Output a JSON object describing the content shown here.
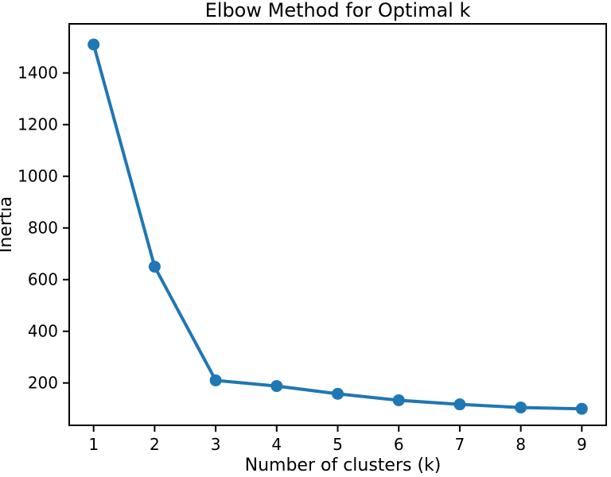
{
  "figure": {
    "background": "#ffffff"
  },
  "chart_data": {
    "type": "line",
    "title": "Elbow Method for Optimal k",
    "xlabel": "Number of clusters (k)",
    "ylabel": "Inertia",
    "x": [
      1,
      2,
      3,
      4,
      5,
      6,
      7,
      8,
      9
    ],
    "series": [
      {
        "name": "inertia",
        "values": [
          1510,
          650,
          210,
          188,
          158,
          133,
          117,
          105,
          100
        ]
      }
    ],
    "xticks": [
      1,
      2,
      3,
      4,
      5,
      6,
      7,
      8,
      9
    ],
    "yticks": [
      200,
      400,
      600,
      800,
      1000,
      1200,
      1400
    ],
    "xlim": [
      0.6,
      9.4
    ],
    "ylim": [
      36,
      1590
    ],
    "grid": false,
    "legend_position": "none",
    "line_color": "#1f77b4",
    "marker": "o",
    "marker_color": "#1f77b4",
    "spine_color": "#000000",
    "text_color": "#000000"
  }
}
